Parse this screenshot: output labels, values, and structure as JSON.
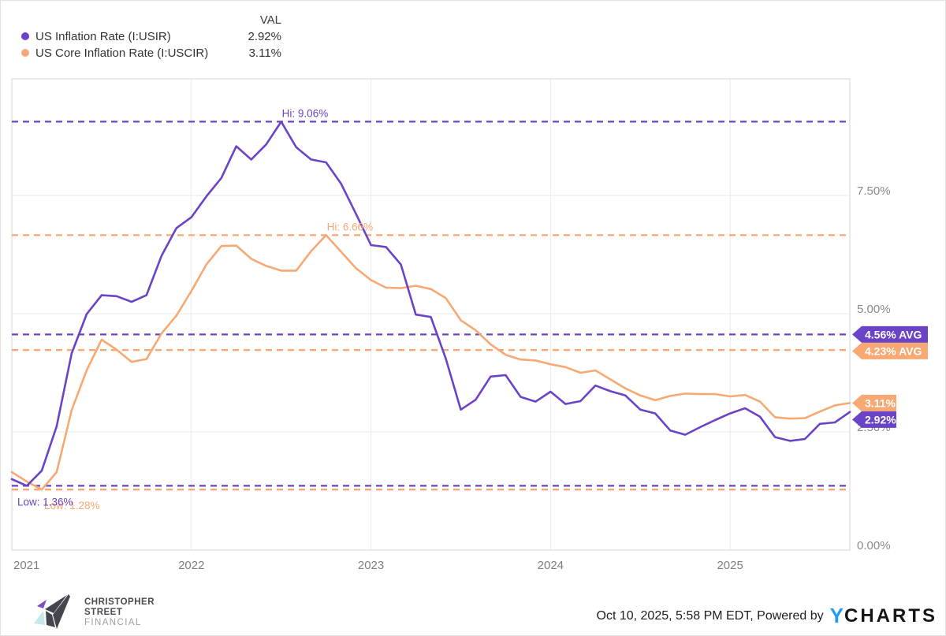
{
  "legend": {
    "val_header": "VAL",
    "items": [
      {
        "label": "US Inflation Rate (I:USIR)",
        "val": "2.92%"
      },
      {
        "label": "US Core Inflation Rate (I:USCIR)",
        "val": "3.11%"
      }
    ]
  },
  "chart_data": {
    "type": "line",
    "title": "",
    "x_start": "2020-12",
    "x_end": "2025-08",
    "x_unit": "month",
    "grid": true,
    "ylim": [
      0,
      10
    ],
    "x_ticks": [
      "2021",
      "2022",
      "2023",
      "2024",
      "2025"
    ],
    "y_ticks": [
      {
        "value": 0,
        "label": "0.00%"
      },
      {
        "value": 2.5,
        "label": "2.50%"
      },
      {
        "value": 5,
        "label": "5.00%"
      },
      {
        "value": 7.5,
        "label": "7.50%"
      }
    ],
    "series": [
      {
        "name": "US Inflation Rate (I:USIR)",
        "color": "#6B43C6",
        "hi": {
          "value": 9.06,
          "label": "Hi: 9.06%"
        },
        "low": {
          "value": 1.36,
          "label": "Low: 1.36%"
        },
        "avg": {
          "value": 4.56,
          "label": "4.56% AVG"
        },
        "last": {
          "value": 2.92,
          "label": "2.92%"
        },
        "values": [
          1.5,
          1.36,
          1.68,
          2.62,
          4.16,
          4.99,
          5.39,
          5.37,
          5.25,
          5.39,
          6.22,
          6.81,
          7.04,
          7.48,
          7.87,
          8.54,
          8.26,
          8.58,
          9.06,
          8.52,
          8.26,
          8.2,
          7.75,
          7.11,
          6.45,
          6.41,
          6.04,
          4.98,
          4.93,
          4.05,
          2.97,
          3.18,
          3.67,
          3.7,
          3.24,
          3.14,
          3.35,
          3.09,
          3.15,
          3.48,
          3.36,
          3.27,
          2.97,
          2.89,
          2.53,
          2.44,
          2.6,
          2.75,
          2.89,
          3.0,
          2.82,
          2.39,
          2.31,
          2.35,
          2.67,
          2.7,
          2.92
        ]
      },
      {
        "name": "US Core Inflation Rate (I:USCIR)",
        "color": "#F8A873",
        "hi": {
          "value": 6.66,
          "label": "Hi: 6.66%"
        },
        "low": {
          "value": 1.28,
          "label": "Low: 1.28%"
        },
        "avg": {
          "value": 4.23,
          "label": "4.23% AVG"
        },
        "last": {
          "value": 3.11,
          "label": "3.11%"
        },
        "values": [
          1.65,
          1.45,
          1.28,
          1.65,
          2.96,
          3.8,
          4.45,
          4.24,
          3.98,
          4.04,
          4.58,
          4.96,
          5.48,
          6.04,
          6.43,
          6.44,
          6.16,
          6.01,
          5.91,
          5.91,
          6.32,
          6.66,
          6.31,
          5.96,
          5.71,
          5.55,
          5.54,
          5.59,
          5.52,
          5.33,
          4.86,
          4.65,
          4.35,
          4.13,
          4.03,
          4.01,
          3.93,
          3.87,
          3.75,
          3.8,
          3.61,
          3.42,
          3.27,
          3.17,
          3.26,
          3.31,
          3.3,
          3.3,
          3.25,
          3.28,
          3.14,
          2.81,
          2.78,
          2.79,
          2.93,
          3.06,
          3.11
        ]
      }
    ]
  },
  "footer": {
    "brand_lines": [
      "CHRISTOPHER",
      "STREET",
      "FINANCIAL"
    ],
    "timestamp": "Oct 10, 2025, 5:58 PM EDT",
    "powered_by": "Powered by",
    "ycharts_y": "Y",
    "ycharts_rest": "CHARTS"
  }
}
